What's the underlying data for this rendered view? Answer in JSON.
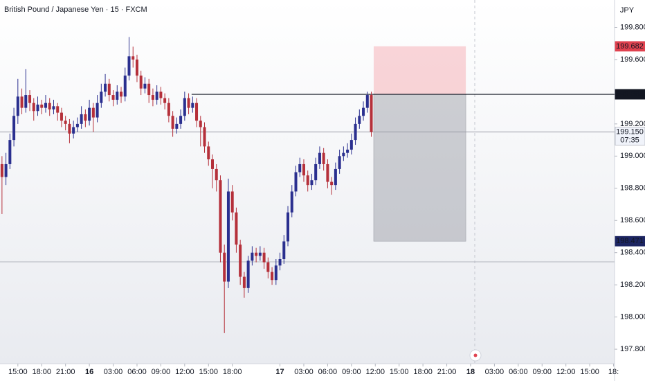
{
  "chart_data": {
    "type": "candlestick",
    "title": "British Pound / Japanese Yen · 15 · FXCM",
    "currency": "JPY",
    "up_color": "#2a2f8f",
    "down_color": "#b5303a",
    "x": [
      -8,
      -6,
      -4,
      -2,
      0,
      2,
      4,
      6,
      8,
      10,
      12,
      14,
      16,
      18,
      20,
      22,
      24,
      26,
      28,
      30,
      32,
      34,
      36,
      38,
      40,
      42,
      44,
      46,
      48,
      50,
      52,
      54,
      56,
      58,
      60,
      62,
      64,
      66,
      68,
      70,
      72,
      74,
      76,
      78,
      80,
      82,
      84,
      86,
      88,
      90,
      92,
      94,
      96,
      98,
      100,
      102,
      104,
      106,
      108,
      110,
      112,
      114,
      116,
      118,
      120,
      122,
      124,
      126,
      128,
      130,
      132,
      134,
      136,
      138,
      140,
      142,
      144,
      146,
      148,
      150,
      152,
      154,
      156,
      158,
      160,
      162,
      164,
      166,
      168,
      170,
      172,
      174,
      176,
      178
    ],
    "candles": [
      [
        198.95,
        199.0,
        198.64,
        198.87
      ],
      [
        198.87,
        199.02,
        198.82,
        198.95
      ],
      [
        198.95,
        199.14,
        198.92,
        199.1
      ],
      [
        199.1,
        199.3,
        199.06,
        199.25
      ],
      [
        199.25,
        199.48,
        199.2,
        199.37
      ],
      [
        199.37,
        199.42,
        199.26,
        199.3
      ],
      [
        199.3,
        199.54,
        199.27,
        199.38
      ],
      [
        199.38,
        199.41,
        199.28,
        199.33
      ],
      [
        199.33,
        199.36,
        199.22,
        199.28
      ],
      [
        199.28,
        199.37,
        199.25,
        199.32
      ],
      [
        199.32,
        199.35,
        199.26,
        199.3
      ],
      [
        199.3,
        199.38,
        199.27,
        199.33
      ],
      [
        199.33,
        199.36,
        199.25,
        199.29
      ],
      [
        199.29,
        199.35,
        199.26,
        199.31
      ],
      [
        199.31,
        199.33,
        199.22,
        199.27
      ],
      [
        199.27,
        199.3,
        199.18,
        199.22
      ],
      [
        199.22,
        199.25,
        199.16,
        199.2
      ],
      [
        199.2,
        199.23,
        199.08,
        199.14
      ],
      [
        199.14,
        199.22,
        199.11,
        199.18
      ],
      [
        199.18,
        199.24,
        199.15,
        199.2
      ],
      [
        199.2,
        199.31,
        199.17,
        199.26
      ],
      [
        199.26,
        199.29,
        199.18,
        199.22
      ],
      [
        199.22,
        199.35,
        199.19,
        199.3
      ],
      [
        199.3,
        199.33,
        199.15,
        199.24
      ],
      [
        199.24,
        199.38,
        199.21,
        199.33
      ],
      [
        199.33,
        199.45,
        199.3,
        199.4
      ],
      [
        199.4,
        199.51,
        199.37,
        199.45
      ],
      [
        199.45,
        199.48,
        199.34,
        199.38
      ],
      [
        199.38,
        199.41,
        199.31,
        199.35
      ],
      [
        199.35,
        199.44,
        199.32,
        199.4
      ],
      [
        199.4,
        199.43,
        199.33,
        199.37
      ],
      [
        199.37,
        199.55,
        199.34,
        199.5
      ],
      [
        199.5,
        199.74,
        199.47,
        199.62
      ],
      [
        199.62,
        199.68,
        199.55,
        199.6
      ],
      [
        199.6,
        199.63,
        199.46,
        199.5
      ],
      [
        199.5,
        199.53,
        199.38,
        199.42
      ],
      [
        199.42,
        199.49,
        199.39,
        199.45
      ],
      [
        199.45,
        199.48,
        199.33,
        199.38
      ],
      [
        199.38,
        199.42,
        199.31,
        199.35
      ],
      [
        199.35,
        199.44,
        199.32,
        199.4
      ],
      [
        199.4,
        199.43,
        199.32,
        199.36
      ],
      [
        199.36,
        199.39,
        199.29,
        199.33
      ],
      [
        199.33,
        199.36,
        199.21,
        199.25
      ],
      [
        199.25,
        199.28,
        199.12,
        199.17
      ],
      [
        199.17,
        199.24,
        199.14,
        199.2
      ],
      [
        199.2,
        199.29,
        199.17,
        199.25
      ],
      [
        199.25,
        199.4,
        199.22,
        199.36
      ],
      [
        199.36,
        199.39,
        199.26,
        199.3
      ],
      [
        199.3,
        199.37,
        199.27,
        199.33
      ],
      [
        199.33,
        199.36,
        199.18,
        199.22
      ],
      [
        199.22,
        199.25,
        199.06,
        199.18
      ],
      [
        199.18,
        199.21,
        199.02,
        199.06
      ],
      [
        199.06,
        199.09,
        198.94,
        198.98
      ],
      [
        198.98,
        199.01,
        198.8,
        198.92
      ],
      [
        198.92,
        198.95,
        198.78,
        198.85
      ],
      [
        198.85,
        198.88,
        198.34,
        198.4
      ],
      [
        198.4,
        198.45,
        197.9,
        198.22
      ],
      [
        198.22,
        198.86,
        198.18,
        198.78
      ],
      [
        198.78,
        198.82,
        198.6,
        198.65
      ],
      [
        198.65,
        198.68,
        198.4,
        198.45
      ],
      [
        198.45,
        198.48,
        198.2,
        198.25
      ],
      [
        198.25,
        198.28,
        198.12,
        198.18
      ],
      [
        198.18,
        198.38,
        198.15,
        198.35
      ],
      [
        198.35,
        198.44,
        198.32,
        198.4
      ],
      [
        198.4,
        198.43,
        198.34,
        198.38
      ],
      [
        198.38,
        198.44,
        198.35,
        198.4
      ],
      [
        198.4,
        198.43,
        198.3,
        198.34
      ],
      [
        198.34,
        198.37,
        198.24,
        198.28
      ],
      [
        198.28,
        198.31,
        198.2,
        198.23
      ],
      [
        198.23,
        198.36,
        198.2,
        198.32
      ],
      [
        198.32,
        198.4,
        198.29,
        198.36
      ],
      [
        198.36,
        198.51,
        198.33,
        198.47
      ],
      [
        198.47,
        198.69,
        198.44,
        198.65
      ],
      [
        198.65,
        198.82,
        198.62,
        198.78
      ],
      [
        198.78,
        198.94,
        198.75,
        198.9
      ],
      [
        198.9,
        198.99,
        198.87,
        198.95
      ],
      [
        198.95,
        198.98,
        198.84,
        198.88
      ],
      [
        198.88,
        198.91,
        198.78,
        198.82
      ],
      [
        198.82,
        198.89,
        198.79,
        198.85
      ],
      [
        198.85,
        198.99,
        198.82,
        198.95
      ],
      [
        198.95,
        199.06,
        198.92,
        199.02
      ],
      [
        199.02,
        199.05,
        198.91,
        198.95
      ],
      [
        198.95,
        198.98,
        198.8,
        198.84
      ],
      [
        198.84,
        198.87,
        198.76,
        198.82
      ],
      [
        198.82,
        198.96,
        198.79,
        198.92
      ],
      [
        198.92,
        199.04,
        198.89,
        199.0
      ],
      [
        199.0,
        199.06,
        198.97,
        199.02
      ],
      [
        199.02,
        199.08,
        198.99,
        199.04
      ],
      [
        199.04,
        199.14,
        199.01,
        199.1
      ],
      [
        199.1,
        199.24,
        199.07,
        199.2
      ],
      [
        199.2,
        199.29,
        199.17,
        199.25
      ],
      [
        199.25,
        199.34,
        199.22,
        199.3
      ],
      [
        199.3,
        199.4,
        199.27,
        199.38
      ],
      [
        199.38,
        199.4,
        199.12,
        199.15
      ]
    ],
    "xlim": [
      -9,
      300.5
    ],
    "ylim": [
      197.71,
      199.97
    ],
    "xticks": [
      {
        "value": 0,
        "label": "15:00"
      },
      {
        "value": 12,
        "label": "18:00"
      },
      {
        "value": 24,
        "label": "21:00"
      },
      {
        "value": 36,
        "label": "16"
      },
      {
        "value": 48,
        "label": "03:00"
      },
      {
        "value": 60,
        "label": "06:00"
      },
      {
        "value": 72,
        "label": "09:00"
      },
      {
        "value": 84,
        "label": "12:00"
      },
      {
        "value": 96,
        "label": "15:00"
      },
      {
        "value": 108,
        "label": "18:00"
      },
      {
        "value": 132,
        "label": "17"
      },
      {
        "value": 144,
        "label": "03:00"
      },
      {
        "value": 156,
        "label": "06:00"
      },
      {
        "value": 168,
        "label": "09:00"
      },
      {
        "value": 180,
        "label": "12:00"
      },
      {
        "value": 192,
        "label": "15:00"
      },
      {
        "value": 204,
        "label": "18:00"
      },
      {
        "value": 216,
        "label": "21:00"
      },
      {
        "value": 228,
        "label": "18"
      },
      {
        "value": 240,
        "label": "03:00"
      },
      {
        "value": 252,
        "label": "06:00"
      },
      {
        "value": 264,
        "label": "09:00"
      },
      {
        "value": 276,
        "label": "12:00"
      },
      {
        "value": 288,
        "label": "15:00"
      },
      {
        "value": 300,
        "label": "18:"
      }
    ],
    "yticks": [
      {
        "value": 199.8,
        "label": "199.800"
      },
      {
        "value": 199.6,
        "label": "199.600"
      },
      {
        "value": 199.2,
        "label": "199.200"
      },
      {
        "value": 199.0,
        "label": "199.000"
      },
      {
        "value": 198.8,
        "label": "198.800"
      },
      {
        "value": 198.6,
        "label": "198.600"
      },
      {
        "value": 198.4,
        "label": "198.400"
      },
      {
        "value": 198.2,
        "label": "198.200"
      },
      {
        "value": 198.0,
        "label": "198.000"
      },
      {
        "value": 197.8,
        "label": "197.800"
      }
    ],
    "hlines": [
      {
        "value": 199.384,
        "label": "199.384",
        "color": "#131722",
        "start": 87.5
      },
      {
        "value": 199.15,
        "label": "199.150",
        "color": "#9598a1",
        "countdown": "07:35"
      },
      {
        "value": 198.343,
        "color": "#b2b5be"
      }
    ],
    "position": {
      "x": [
        179.2,
        225.6
      ],
      "stop": 199.682,
      "stop_label": "199.682",
      "entry": 199.384,
      "target": 198.471,
      "target_label": "198.471"
    }
  }
}
